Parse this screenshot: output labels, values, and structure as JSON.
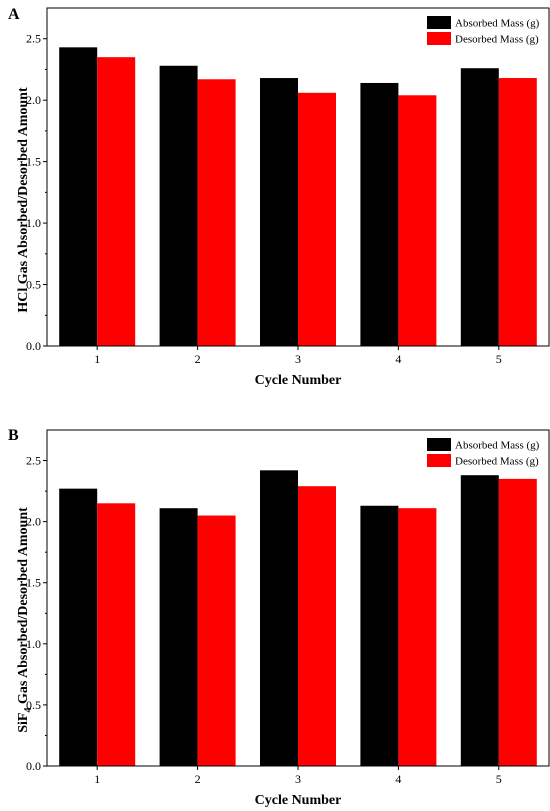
{
  "chart_data": [
    {
      "type": "bar",
      "panel_label": "A",
      "xlabel": "Cycle Number",
      "ylabel": "HCl Gas Absorbed/Desorbed Amount",
      "categories": [
        "1",
        "2",
        "3",
        "4",
        "5"
      ],
      "ylim": [
        0,
        2.75
      ],
      "yticks": [
        "0.0",
        "0.5",
        "1.0",
        "1.5",
        "2.0",
        "2.5"
      ],
      "legend_position": "top-right",
      "series": [
        {
          "name": "Absorbed Mass (g)",
          "color": "#000000",
          "values": [
            2.43,
            2.28,
            2.18,
            2.14,
            2.26
          ]
        },
        {
          "name": "Desorbed Mass (g)",
          "color": "#ff0000",
          "values": [
            2.35,
            2.17,
            2.06,
            2.04,
            2.18
          ]
        }
      ]
    },
    {
      "type": "bar",
      "panel_label": "B",
      "xlabel": "Cycle Number",
      "ylabel_main": "SiF",
      "ylabel_sub": "4",
      "ylabel_rest": " Gas Absorbed/Desorbed Amount",
      "categories": [
        "1",
        "2",
        "3",
        "4",
        "5"
      ],
      "ylim": [
        0,
        2.75
      ],
      "yticks": [
        "0.0",
        "0.5",
        "1.0",
        "1.5",
        "2.0",
        "2.5"
      ],
      "legend_position": "top-right",
      "series": [
        {
          "name": "Absorbed Mass (g)",
          "color": "#000000",
          "values": [
            2.27,
            2.11,
            2.42,
            2.13,
            2.38
          ]
        },
        {
          "name": "Desorbed Mass (g)",
          "color": "#ff0000",
          "values": [
            2.15,
            2.05,
            2.29,
            2.11,
            2.35
          ]
        }
      ]
    }
  ]
}
